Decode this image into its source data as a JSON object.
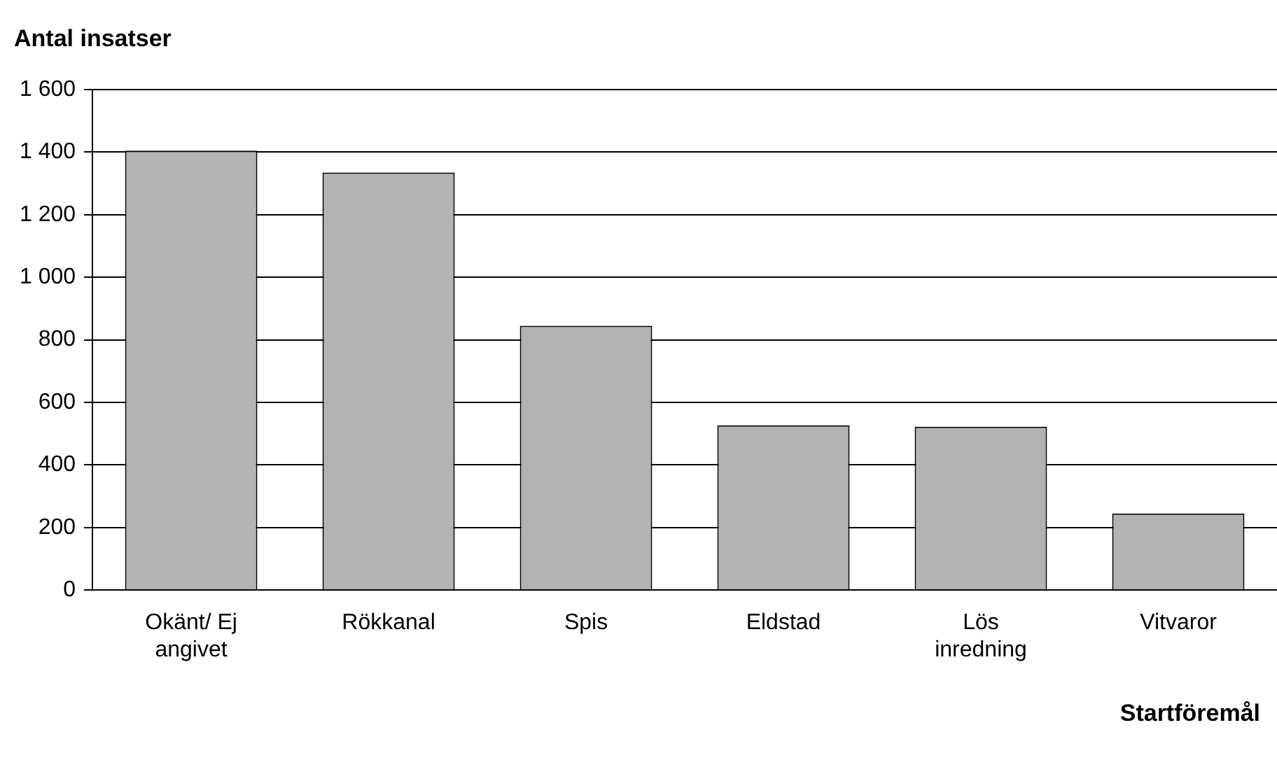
{
  "chart_data": {
    "type": "bar",
    "ylabel": "Antal insatser",
    "xlabel": "Startföremål",
    "categories": [
      "Okänt/ Ej angivet",
      "Rökkanal",
      "Spis",
      "Eldstad",
      "Lös inredning",
      "Vitvaror"
    ],
    "values": [
      1405,
      1335,
      845,
      527,
      522,
      245
    ],
    "color": "#b3b3b3",
    "ylim": [
      0,
      1600
    ],
    "yticks": [
      0,
      200,
      400,
      600,
      800,
      {
        "value": 1000,
        "label": "1 000"
      },
      {
        "value": 1200,
        "label": "1 200"
      },
      {
        "value": 1400,
        "label": "1 400"
      },
      {
        "value": 1600,
        "label": "1 600"
      }
    ],
    "grid": "y",
    "legend": false
  }
}
